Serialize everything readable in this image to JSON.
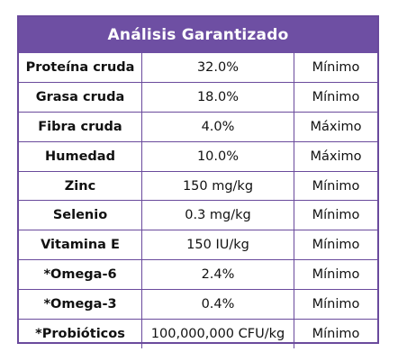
{
  "title": "Análisis Garantizado",
  "rows": [
    {
      "name": "Proteína cruda",
      "value": "32.0%",
      "type": "Mínimo"
    },
    {
      "name": "Grasa cruda",
      "value": "18.0%",
      "type": "Mínimo"
    },
    {
      "name": "Fibra cruda",
      "value": "4.0%",
      "type": "Máximo"
    },
    {
      "name": "Humedad",
      "value": "10.0%",
      "type": "Máximo"
    },
    {
      "name": "Zinc",
      "value": "150 mg/kg",
      "type": "Mínimo"
    },
    {
      "name": "Selenio",
      "value": "0.3 mg/kg",
      "type": "Mínimo"
    },
    {
      "name": "Vitamina E",
      "value": "150 IU/kg",
      "type": "Mínimo"
    },
    {
      "name": "*Omega-6",
      "value": "2.4%",
      "type": "Mínimo"
    },
    {
      "name": "*Omega-3",
      "value": "0.4%",
      "type": "Mínimo"
    },
    {
      "name": "*Probióticos",
      "value": "100,000,000 CFU/kg",
      "type": "Mínimo"
    }
  ],
  "colors": {
    "header_background": "#6e4fa3",
    "border": "#6a4a9c",
    "header_text": "#ffffff"
  }
}
